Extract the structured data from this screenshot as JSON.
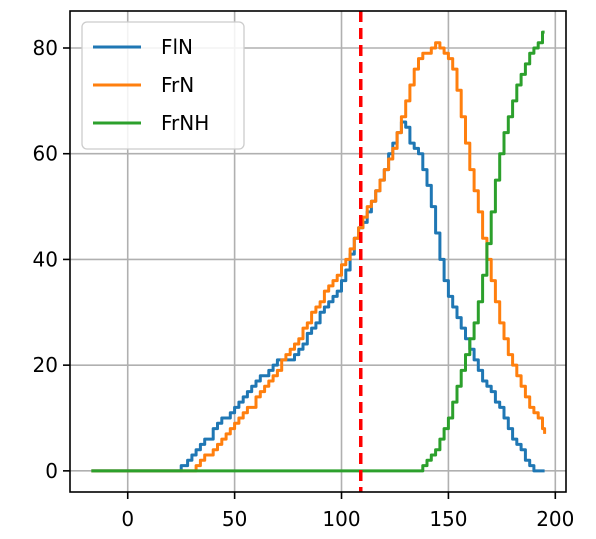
{
  "chart_data": {
    "type": "line",
    "title": "",
    "xlabel": "",
    "ylabel": "",
    "xlim": [
      -27,
      205
    ],
    "ylim": [
      -4,
      87
    ],
    "xticks": [
      0,
      50,
      100,
      150,
      200
    ],
    "yticks": [
      0,
      20,
      40,
      60,
      80
    ],
    "grid": true,
    "legend_position": "top-left",
    "series": [
      {
        "name": "FlN",
        "color": "#1f77b4",
        "x": [
          -17,
          0,
          23,
          25,
          28,
          30,
          32,
          34,
          36,
          38,
          40,
          42,
          44,
          46,
          48,
          50,
          52,
          54,
          56,
          58,
          60,
          62,
          64,
          66,
          68,
          70,
          72,
          74,
          76,
          78,
          80,
          82,
          84,
          86,
          88,
          90,
          92,
          94,
          96,
          98,
          100,
          102,
          104,
          106,
          108,
          110,
          112,
          114,
          116,
          118,
          120,
          122,
          124,
          126,
          128,
          130,
          132,
          134,
          136,
          138,
          140,
          142,
          144,
          146,
          148,
          150,
          152,
          154,
          156,
          158,
          160,
          162,
          164,
          166,
          168,
          170,
          172,
          174,
          176,
          178,
          180,
          182,
          184,
          186,
          188,
          190,
          192,
          195
        ],
        "y": [
          0,
          0,
          0,
          1,
          2,
          3,
          4,
          5,
          6,
          6,
          8,
          9,
          10,
          10,
          11,
          12,
          13,
          14,
          15,
          16,
          17,
          18,
          18,
          19,
          20,
          21,
          21,
          21,
          21,
          22,
          23,
          24,
          26,
          27,
          28,
          30,
          31,
          32,
          33,
          34,
          36,
          38,
          41,
          44,
          46,
          47,
          49,
          51,
          53,
          55,
          57,
          60,
          62,
          64,
          66,
          65,
          62,
          61,
          60,
          57,
          54,
          50,
          45,
          40,
          36,
          33,
          31,
          29,
          27,
          25,
          23,
          21,
          19,
          17,
          16,
          15,
          13,
          12,
          10,
          8,
          6,
          5,
          4,
          2,
          1,
          0,
          0,
          0
        ]
      },
      {
        "name": "FrN",
        "color": "#ff7f0e",
        "x": [
          -17,
          0,
          25,
          30,
          32,
          34,
          36,
          38,
          40,
          42,
          44,
          46,
          48,
          50,
          52,
          54,
          56,
          58,
          60,
          62,
          64,
          66,
          68,
          70,
          72,
          74,
          76,
          78,
          80,
          82,
          84,
          86,
          88,
          90,
          92,
          94,
          96,
          98,
          100,
          102,
          104,
          106,
          108,
          110,
          112,
          114,
          116,
          118,
          120,
          122,
          124,
          126,
          128,
          130,
          132,
          134,
          136,
          138,
          140,
          142,
          144,
          146,
          148,
          150,
          152,
          154,
          156,
          158,
          160,
          162,
          164,
          166,
          168,
          170,
          172,
          174,
          176,
          178,
          180,
          182,
          184,
          186,
          188,
          190,
          192,
          194,
          195
        ],
        "y": [
          0,
          0,
          0,
          0,
          1,
          2,
          3,
          3,
          4,
          5,
          6,
          7,
          8,
          9,
          10,
          11,
          12,
          12,
          14,
          15,
          16,
          17,
          18,
          19,
          21,
          22,
          23,
          24,
          25,
          27,
          28,
          30,
          31,
          32,
          34,
          35,
          36,
          37,
          39,
          40,
          42,
          44,
          46,
          48,
          50,
          51,
          53,
          55,
          57,
          59,
          61,
          64,
          67,
          70,
          73,
          76,
          78,
          79,
          79,
          80,
          81,
          80,
          79,
          78,
          76,
          72,
          67,
          62,
          57,
          53,
          49,
          44,
          40,
          36,
          32,
          28,
          25,
          22,
          20,
          18,
          16,
          14,
          12,
          11,
          10,
          8,
          7
        ]
      },
      {
        "name": "FrNH",
        "color": "#2ca02c",
        "x": [
          -17,
          0,
          50,
          100,
          136,
          138,
          140,
          142,
          144,
          146,
          148,
          150,
          152,
          154,
          156,
          158,
          160,
          162,
          164,
          166,
          168,
          170,
          172,
          174,
          176,
          178,
          180,
          182,
          184,
          186,
          188,
          190,
          192,
          194,
          195
        ],
        "y": [
          0,
          0,
          0,
          0,
          0,
          1,
          2,
          3,
          4,
          6,
          8,
          10,
          13,
          16,
          19,
          22,
          25,
          28,
          32,
          37,
          43,
          49,
          55,
          60,
          64,
          67,
          70,
          73,
          75,
          77,
          79,
          80,
          81,
          83,
          83
        ]
      }
    ],
    "reference_line": {
      "x": 109,
      "color": "#ff0000",
      "style": "dashed"
    }
  }
}
